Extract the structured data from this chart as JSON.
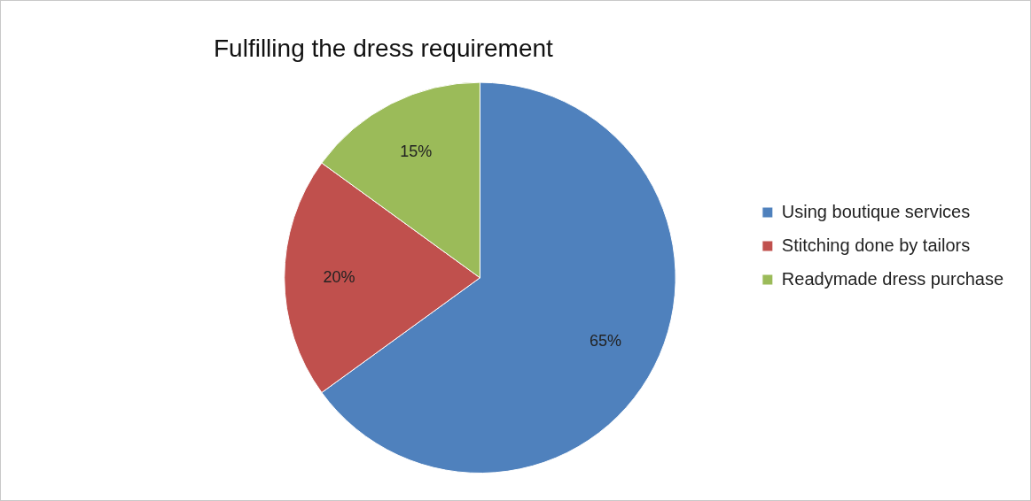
{
  "chart_data": {
    "type": "pie",
    "title": "Fulfilling the dress requirement",
    "categories": [
      "Using boutique services",
      "Stitching done by tailors",
      "Readymade dress purchase"
    ],
    "values": [
      65,
      20,
      15
    ],
    "colors": [
      "#4f81bd",
      "#c0504d",
      "#9bbb59"
    ],
    "value_labels": [
      "65%",
      "20%",
      "15%"
    ],
    "legend": "right"
  }
}
